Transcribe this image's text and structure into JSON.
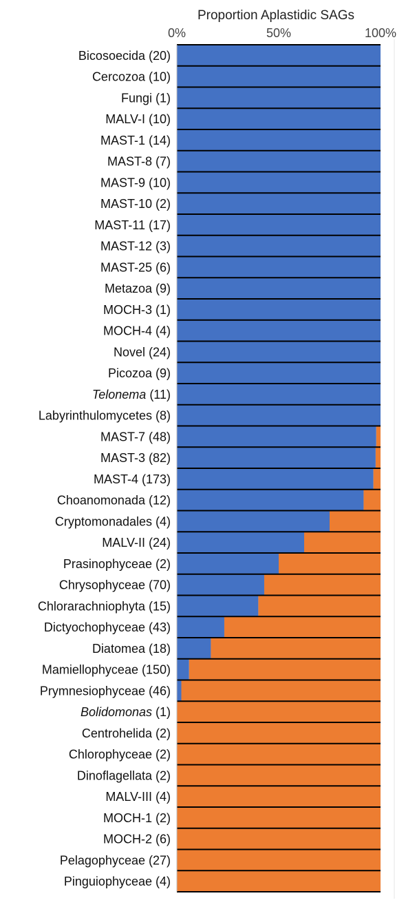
{
  "chart_data": {
    "type": "bar",
    "orientation": "horizontal",
    "stacked": true,
    "title": "Proportion Aplastidic SAGs",
    "x_tick_labels": [
      "0%",
      "50%",
      "100%"
    ],
    "xlim": [
      0,
      100
    ],
    "grid": false,
    "legend": "none",
    "colors": {
      "aplastidic": "#4472C4",
      "plastidic": "#ED7D31",
      "separator": "#000000",
      "axis": "#bfbfbf"
    },
    "categories": [
      {
        "name": "Bicosoecida",
        "count": "(20)",
        "italic": false
      },
      {
        "name": "Cercozoa",
        "count": "(10)",
        "italic": false
      },
      {
        "name": "Fungi",
        "count": "(1)",
        "italic": false
      },
      {
        "name": "MALV-I",
        "count": "(10)",
        "italic": false
      },
      {
        "name": "MAST-1",
        "count": "(14)",
        "italic": false
      },
      {
        "name": "MAST-8",
        "count": "(7)",
        "italic": false
      },
      {
        "name": "MAST-9",
        "count": "(10)",
        "italic": false
      },
      {
        "name": "MAST-10",
        "count": "(2)",
        "italic": false
      },
      {
        "name": "MAST-11",
        "count": "(17)",
        "italic": false
      },
      {
        "name": "MAST-12",
        "count": "(3)",
        "italic": false
      },
      {
        "name": "MAST-25",
        "count": "(6)",
        "italic": false
      },
      {
        "name": "Metazoa",
        "count": "(9)",
        "italic": false
      },
      {
        "name": "MOCH-3",
        "count": "(1)",
        "italic": false
      },
      {
        "name": "MOCH-4",
        "count": "(4)",
        "italic": false
      },
      {
        "name": "Novel",
        "count": "(24)",
        "italic": false
      },
      {
        "name": "Picozoa",
        "count": "(9)",
        "italic": false
      },
      {
        "name": "Telonema",
        "count": "(11)",
        "italic": true
      },
      {
        "name": "Labyrinthulomycetes",
        "count": "(8)",
        "italic": false
      },
      {
        "name": "MAST-7",
        "count": "(48)",
        "italic": false
      },
      {
        "name": "MAST-3",
        "count": "(82)",
        "italic": false
      },
      {
        "name": "MAST-4",
        "count": "(173)",
        "italic": false
      },
      {
        "name": "Choanomonada",
        "count": "(12)",
        "italic": false
      },
      {
        "name": "Cryptomonadales",
        "count": "(4)",
        "italic": false
      },
      {
        "name": "MALV-II",
        "count": "(24)",
        "italic": false
      },
      {
        "name": "Prasinophyceae",
        "count": "(2)",
        "italic": false
      },
      {
        "name": "Chrysophyceae",
        "count": "(70)",
        "italic": false
      },
      {
        "name": "Chlorarachniophyta",
        "count": "(15)",
        "italic": false
      },
      {
        "name": "Dictyochophyceae",
        "count": "(43)",
        "italic": false
      },
      {
        "name": "Diatomea",
        "count": "(18)",
        "italic": false
      },
      {
        "name": "Mamiellophyceae",
        "count": "(150)",
        "italic": false
      },
      {
        "name": "Prymnesiophyceae",
        "count": "(46)",
        "italic": false
      },
      {
        "name": "Bolidomonas",
        "count": "(1)",
        "italic": true
      },
      {
        "name": "Centrohelida",
        "count": "(2)",
        "italic": false
      },
      {
        "name": "Chlorophyceae",
        "count": "(2)",
        "italic": false
      },
      {
        "name": "Dinoflagellata",
        "count": "(2)",
        "italic": false
      },
      {
        "name": "MALV-III",
        "count": "(4)",
        "italic": false
      },
      {
        "name": "MOCH-1",
        "count": "(2)",
        "italic": false
      },
      {
        "name": "MOCH-2",
        "count": "(6)",
        "italic": false
      },
      {
        "name": "Pelagophyceae",
        "count": "(27)",
        "italic": false
      },
      {
        "name": "Pinguiophyceae",
        "count": "(4)",
        "italic": false
      }
    ],
    "series": [
      {
        "key": "aplastidic",
        "values": [
          100,
          100,
          100,
          100,
          100,
          100,
          100,
          100,
          100,
          100,
          100,
          100,
          100,
          100,
          100,
          100,
          100,
          100,
          97.9,
          97.6,
          96.5,
          91.7,
          75,
          62.5,
          50,
          42.9,
          40,
          23.3,
          16.7,
          6,
          2.2,
          0,
          0,
          0,
          0,
          0,
          0,
          0,
          0,
          0
        ]
      },
      {
        "key": "plastidic",
        "values": [
          0,
          0,
          0,
          0,
          0,
          0,
          0,
          0,
          0,
          0,
          0,
          0,
          0,
          0,
          0,
          0,
          0,
          0,
          2.1,
          2.4,
          3.5,
          8.3,
          25,
          37.5,
          50,
          57.1,
          60,
          76.7,
          83.3,
          94,
          97.8,
          100,
          100,
          100,
          100,
          100,
          100,
          100,
          100,
          100
        ]
      }
    ]
  }
}
